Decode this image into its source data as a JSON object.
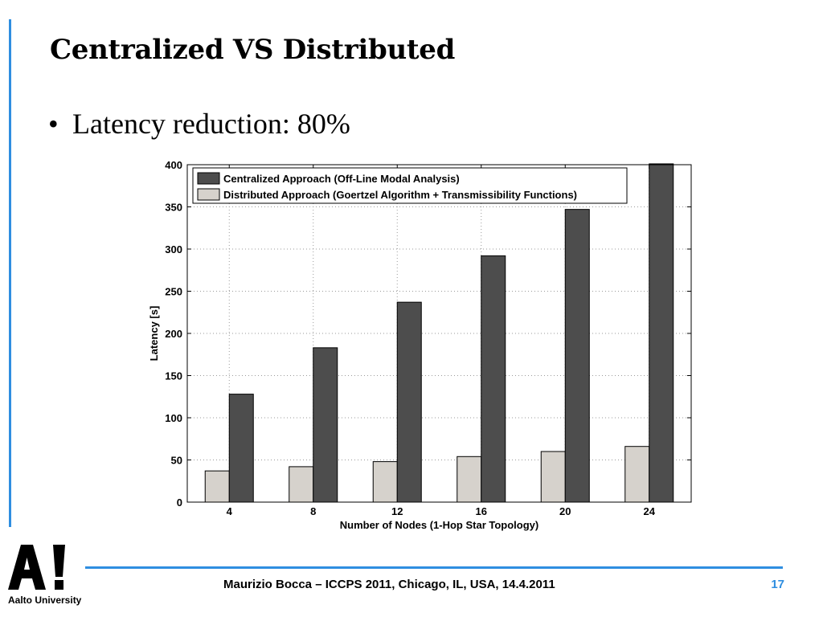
{
  "slide": {
    "title": "Centralized VS Distributed",
    "bullet": "Latency reduction: 80%"
  },
  "footer": {
    "text": "Maurizio Bocca – ICCPS 2011, Chicago, IL, USA, 14.4.2011",
    "page": "17",
    "logo_text": "Aalto University",
    "logo_mark": "A!"
  },
  "colors": {
    "accent": "#2f8ee0",
    "centralized": "#4d4d4d",
    "distributed": "#d6d2cc"
  },
  "chart_data": {
    "type": "bar",
    "title": "",
    "xlabel": "Number of Nodes (1-Hop Star Topology)",
    "ylabel": "Latency [s]",
    "categories": [
      "4",
      "8",
      "12",
      "16",
      "20",
      "24"
    ],
    "ylim": [
      0,
      400
    ],
    "yticks": [
      0,
      50,
      100,
      150,
      200,
      250,
      300,
      350,
      400
    ],
    "grid": true,
    "legend_position": "top-left",
    "series": [
      {
        "name": "Distributed Approach (Goertzel Algorithm + Transmissibility Functions)",
        "color": "#d6d2cc",
        "values": [
          37,
          42,
          48,
          54,
          60,
          66
        ]
      },
      {
        "name": "Centralized Approach (Off-Line Modal Analysis)",
        "color": "#4d4d4d",
        "values": [
          128,
          183,
          237,
          292,
          347,
          401
        ]
      }
    ],
    "legend_order": [
      1,
      0
    ]
  }
}
